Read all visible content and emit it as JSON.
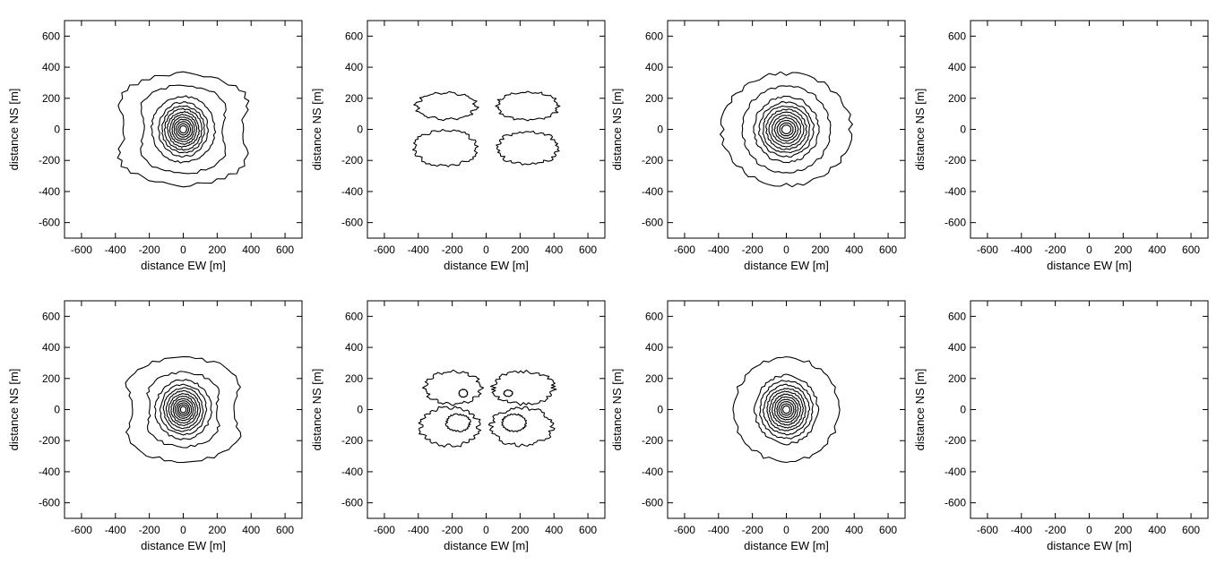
{
  "chart_data": {
    "type": "contour",
    "grid": "2x4",
    "xlabel": "distance EW [m]",
    "ylabel": "distance NS [m]",
    "xlim": [
      -700,
      700
    ],
    "ylim": [
      -700,
      700
    ],
    "xticks": [
      -600,
      -400,
      -200,
      0,
      200,
      400,
      600
    ],
    "yticks": [
      -600,
      -400,
      -200,
      0,
      200,
      400,
      600
    ],
    "panels": [
      {
        "id": "r1c1",
        "center": [
          0,
          0
        ],
        "contour_levels": [
          {
            "shape": "bilobe",
            "rx": 480,
            "ry": 360,
            "waist": 0.28
          },
          {
            "shape": "bilobe",
            "rx": 310,
            "ry": 285,
            "waist": 0.25
          },
          {
            "shape": "ellipse",
            "rx": 185,
            "ry": 210
          },
          {
            "shape": "ellipse",
            "rx": 145,
            "ry": 175
          },
          {
            "shape": "ellipse",
            "rx": 125,
            "ry": 150
          },
          {
            "shape": "ellipse",
            "rx": 108,
            "ry": 130
          },
          {
            "shape": "ellipse",
            "rx": 93,
            "ry": 112
          },
          {
            "shape": "ellipse",
            "rx": 79,
            "ry": 95
          },
          {
            "shape": "ellipse",
            "rx": 66,
            "ry": 79
          },
          {
            "shape": "ellipse",
            "rx": 54,
            "ry": 64
          },
          {
            "shape": "ellipse",
            "rx": 42,
            "ry": 50
          },
          {
            "shape": "ellipse",
            "rx": 31,
            "ry": 36
          },
          {
            "shape": "ellipse",
            "rx": 20,
            "ry": 23
          }
        ]
      },
      {
        "id": "r1c2",
        "center": [
          0,
          0
        ],
        "contour_levels": [
          {
            "shape": "blob",
            "cx": -235,
            "cy": 150,
            "rx": 175,
            "ry": 85
          },
          {
            "shape": "blob",
            "cx": 245,
            "cy": 150,
            "rx": 180,
            "ry": 90
          },
          {
            "shape": "blob",
            "cx": -240,
            "cy": -120,
            "rx": 185,
            "ry": 115
          },
          {
            "shape": "blob",
            "cx": 245,
            "cy": -120,
            "rx": 180,
            "ry": 105
          }
        ]
      },
      {
        "id": "r1c3",
        "center": [
          0,
          0
        ],
        "contour_levels": [
          {
            "shape": "ellipse",
            "rx": 380,
            "ry": 360
          },
          {
            "shape": "ellipse",
            "rx": 260,
            "ry": 280
          },
          {
            "shape": "ellipse",
            "rx": 190,
            "ry": 210
          },
          {
            "shape": "ellipse",
            "rx": 160,
            "ry": 175
          },
          {
            "shape": "ellipse",
            "rx": 138,
            "ry": 150
          },
          {
            "shape": "ellipse",
            "rx": 118,
            "ry": 128
          },
          {
            "shape": "ellipse",
            "rx": 100,
            "ry": 108
          },
          {
            "shape": "ellipse",
            "rx": 84,
            "ry": 90
          },
          {
            "shape": "ellipse",
            "rx": 68,
            "ry": 73
          },
          {
            "shape": "ellipse",
            "rx": 54,
            "ry": 57
          },
          {
            "shape": "ellipse",
            "rx": 40,
            "ry": 42
          },
          {
            "shape": "ellipse",
            "rx": 27,
            "ry": 28
          }
        ]
      },
      {
        "id": "r1c4",
        "contour_levels": []
      },
      {
        "id": "r2c1",
        "center": [
          0,
          0
        ],
        "contour_levels": [
          {
            "shape": "bilobe",
            "rx": 420,
            "ry": 335,
            "waist": 0.3
          },
          {
            "shape": "bilobe",
            "rx": 260,
            "ry": 240,
            "waist": 0.25
          },
          {
            "shape": "ellipse",
            "rx": 165,
            "ry": 190
          },
          {
            "shape": "ellipse",
            "rx": 135,
            "ry": 160
          },
          {
            "shape": "ellipse",
            "rx": 115,
            "ry": 138
          },
          {
            "shape": "ellipse",
            "rx": 98,
            "ry": 118
          },
          {
            "shape": "ellipse",
            "rx": 84,
            "ry": 100
          },
          {
            "shape": "ellipse",
            "rx": 71,
            "ry": 85
          },
          {
            "shape": "ellipse",
            "rx": 59,
            "ry": 70
          },
          {
            "shape": "ellipse",
            "rx": 48,
            "ry": 56
          },
          {
            "shape": "ellipse",
            "rx": 37,
            "ry": 43
          },
          {
            "shape": "ellipse",
            "rx": 27,
            "ry": 31
          },
          {
            "shape": "ellipse",
            "rx": 17,
            "ry": 20
          }
        ]
      },
      {
        "id": "r2c2",
        "center": [
          0,
          0
        ],
        "contour_levels": [
          {
            "shape": "blob",
            "cx": -195,
            "cy": 140,
            "rx": 165,
            "ry": 105
          },
          {
            "shape": "blob",
            "cx": -135,
            "cy": 105,
            "rx": 25,
            "ry": 25
          },
          {
            "shape": "blob",
            "cx": 220,
            "cy": 140,
            "rx": 180,
            "ry": 105
          },
          {
            "shape": "blob",
            "cx": 130,
            "cy": 105,
            "rx": 25,
            "ry": 20
          },
          {
            "shape": "blob",
            "cx": -215,
            "cy": -110,
            "rx": 175,
            "ry": 125
          },
          {
            "shape": "blob",
            "cx": -165,
            "cy": -85,
            "rx": 70,
            "ry": 55
          },
          {
            "shape": "blob",
            "cx": 210,
            "cy": -110,
            "rx": 180,
            "ry": 120
          },
          {
            "shape": "blob",
            "cx": 165,
            "cy": -85,
            "rx": 70,
            "ry": 55
          }
        ]
      },
      {
        "id": "r2c3",
        "center": [
          0,
          0
        ],
        "contour_levels": [
          {
            "shape": "ellipse",
            "rx": 310,
            "ry": 335
          },
          {
            "shape": "ellipse",
            "rx": 185,
            "ry": 220
          },
          {
            "shape": "ellipse",
            "rx": 155,
            "ry": 185
          },
          {
            "shape": "ellipse",
            "rx": 133,
            "ry": 158
          },
          {
            "shape": "ellipse",
            "rx": 114,
            "ry": 136
          },
          {
            "shape": "ellipse",
            "rx": 98,
            "ry": 116
          },
          {
            "shape": "ellipse",
            "rx": 83,
            "ry": 98
          },
          {
            "shape": "ellipse",
            "rx": 69,
            "ry": 82
          },
          {
            "shape": "ellipse",
            "rx": 56,
            "ry": 66
          },
          {
            "shape": "ellipse",
            "rx": 44,
            "ry": 51
          },
          {
            "shape": "ellipse",
            "rx": 32,
            "ry": 37
          },
          {
            "shape": "ellipse",
            "rx": 21,
            "ry": 24
          }
        ]
      },
      {
        "id": "r2c4",
        "contour_levels": []
      }
    ]
  }
}
